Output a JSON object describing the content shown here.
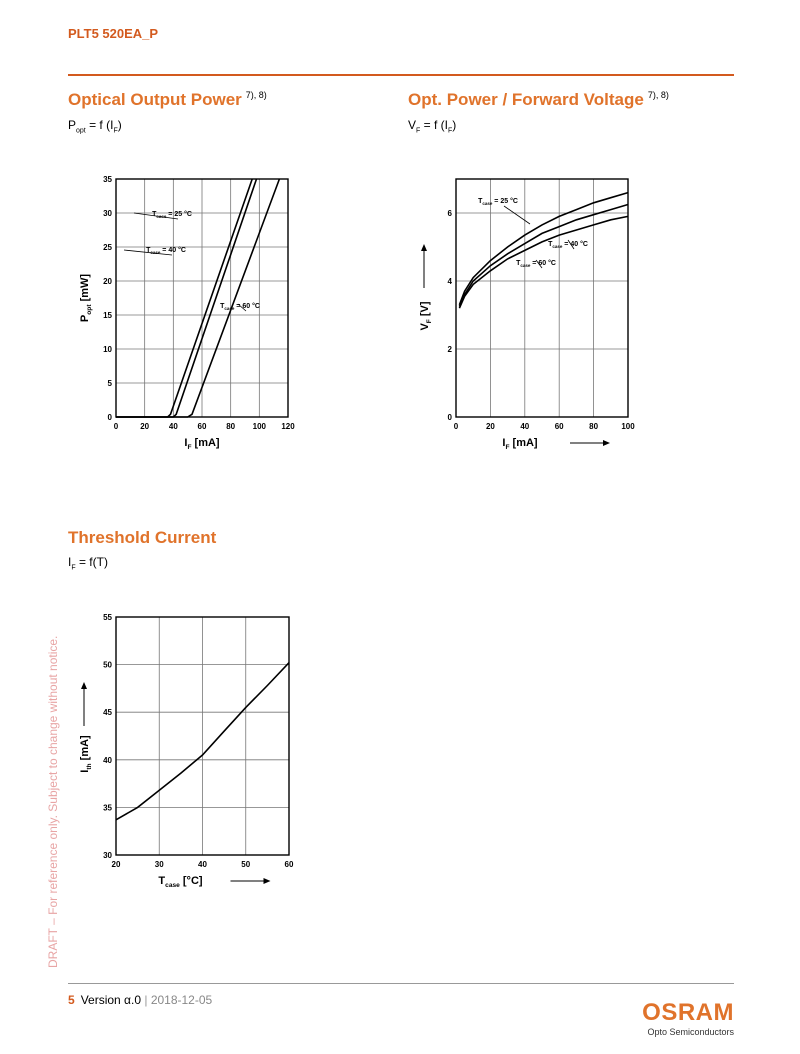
{
  "header": {
    "product": "PLT5 520EA_P"
  },
  "sections": {
    "optical_power": {
      "title": "Optical Output Power",
      "footnote": "7), 8)",
      "formula_main": "P",
      "formula_sub": "opt",
      "formula_mid": " = f (I",
      "formula_sub2": "F",
      "formula_end": ")"
    },
    "forward_voltage": {
      "title": "Opt. Power / Forward Voltage",
      "footnote": "7), 8)",
      "formula_main": "V",
      "formula_sub": "F",
      "formula_mid": " = f (I",
      "formula_sub2": "F",
      "formula_end": ")"
    },
    "threshold": {
      "title": "Threshold Current",
      "formula_main": "I",
      "formula_sub": "F",
      "formula_mid": " = f(T)"
    }
  },
  "chart_data": [
    {
      "type": "line",
      "xlabel": "I",
      "xlabel_sub": "F",
      "xlabel_unit": " [mA]",
      "ylabel": "P",
      "ylabel_sub": "opt",
      "ylabel_unit": " [mW]",
      "xlim": [
        0,
        120
      ],
      "ylim": [
        0,
        35
      ],
      "xticks": [
        0,
        20,
        40,
        60,
        80,
        100,
        120
      ],
      "yticks": [
        0,
        5,
        10,
        15,
        20,
        25,
        30,
        35
      ],
      "grid": true,
      "series": [
        {
          "name": "T",
          "name_sub": "case",
          "name_val": " = 25 °C",
          "x": [
            0,
            36,
            38,
            95
          ],
          "y": [
            0,
            0,
            0.4,
            35
          ]
        },
        {
          "name": "T",
          "name_sub": "case",
          "name_val": " = 40 °C",
          "x": [
            0,
            40,
            42,
            98
          ],
          "y": [
            0,
            0,
            0.4,
            35
          ]
        },
        {
          "name": "T",
          "name_sub": "case",
          "name_val": " = 60 °C",
          "x": [
            0,
            50,
            53,
            114
          ],
          "y": [
            0,
            0,
            0.4,
            35
          ]
        }
      ]
    },
    {
      "type": "line",
      "xlabel": "I",
      "xlabel_sub": "F",
      "xlabel_unit": " [mA]",
      "ylabel": "V",
      "ylabel_sub": "F",
      "ylabel_unit": " [V]",
      "xlim": [
        0,
        100
      ],
      "ylim": [
        0,
        7
      ],
      "xticks": [
        0,
        20,
        40,
        60,
        80,
        100
      ],
      "yticks": [
        0,
        2,
        4,
        6
      ],
      "grid": true,
      "series": [
        {
          "name": "T",
          "name_sub": "case",
          "name_val": " = 25 °C",
          "x": [
            2,
            5,
            10,
            20,
            30,
            40,
            50,
            60,
            70,
            80,
            90,
            100
          ],
          "y": [
            3.3,
            3.7,
            4.1,
            4.6,
            5.0,
            5.35,
            5.65,
            5.9,
            6.1,
            6.3,
            6.45,
            6.6
          ]
        },
        {
          "name": "T",
          "name_sub": "case",
          "name_val": " = 40 °C",
          "x": [
            2,
            5,
            10,
            20,
            30,
            40,
            50,
            60,
            70,
            80,
            90,
            100
          ],
          "y": [
            3.25,
            3.6,
            4.0,
            4.45,
            4.8,
            5.1,
            5.4,
            5.6,
            5.8,
            5.95,
            6.1,
            6.25
          ]
        },
        {
          "name": "T",
          "name_sub": "case",
          "name_val": " = 60 °C",
          "x": [
            2,
            5,
            10,
            20,
            30,
            40,
            50,
            60,
            70,
            80,
            90,
            100
          ],
          "y": [
            3.2,
            3.55,
            3.9,
            4.3,
            4.65,
            4.9,
            5.15,
            5.35,
            5.5,
            5.65,
            5.8,
            5.9
          ]
        }
      ]
    },
    {
      "type": "line",
      "xlabel": "T",
      "xlabel_sub": "case",
      "xlabel_unit": " [°C]",
      "ylabel": "I",
      "ylabel_sub": "th",
      "ylabel_unit": " [mA]",
      "xlim": [
        20,
        60
      ],
      "ylim": [
        30,
        55
      ],
      "xticks": [
        20,
        30,
        40,
        50,
        60
      ],
      "yticks": [
        30,
        35,
        40,
        45,
        50,
        55
      ],
      "grid": true,
      "series": [
        {
          "x": [
            20,
            25,
            30,
            35,
            40,
            45,
            50,
            55,
            60
          ],
          "y": [
            33.7,
            35.0,
            36.8,
            38.6,
            40.5,
            43.0,
            45.5,
            47.8,
            50.2
          ]
        }
      ]
    }
  ],
  "watermark": "DRAFT – For reference only. Subject to change without notice.",
  "footer": {
    "page": "5",
    "version": "Version α.0",
    "sep": "|",
    "date": "2018-12-05"
  },
  "logo": {
    "brand": "OSRAM",
    "tagline": "Opto Semiconductors"
  },
  "colors": {
    "accent": "#e0732b",
    "header": "#d35a1e",
    "watermark": "#e8a5a5"
  }
}
